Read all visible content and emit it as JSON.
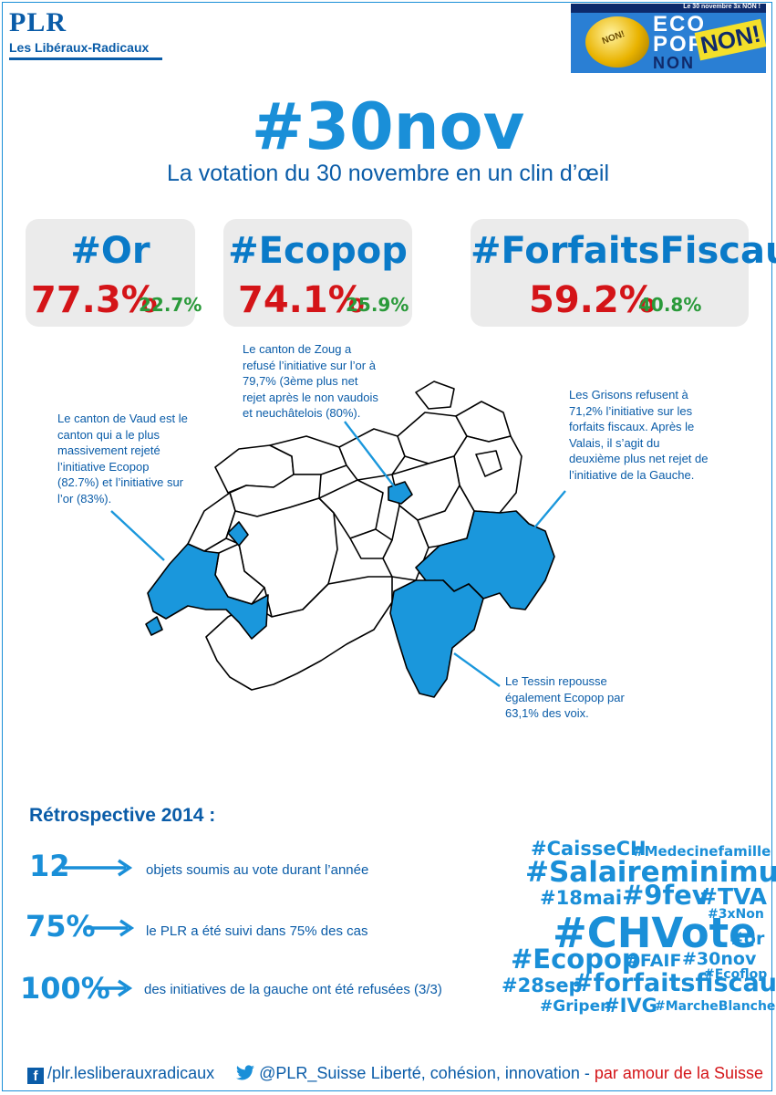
{
  "header": {
    "logo": "PLR",
    "party_name": "Les Libéraux-Radicaux",
    "banner": {
      "top_line": "Le 30 novembre 3x NON !",
      "coin_text": "NON!",
      "line1": "ECO",
      "line2": "POP",
      "line3": "NON",
      "stamp": "NON!"
    }
  },
  "title": "#30nov",
  "subtitle": "La votation du 30 novembre en un clin d’œil",
  "results": [
    {
      "tag": "#Or",
      "no_share": "77.3%",
      "yes_share": "22.7%"
    },
    {
      "tag": "#Ecopop",
      "no_share": "74.1%",
      "yes_share": "25.9%"
    },
    {
      "tag": "#ForfaitsFiscaux",
      "no_share": "59.2%",
      "yes_share": "40.8%"
    }
  ],
  "colors": {
    "brand_blue": "#0a5ca8",
    "accent_blue": "#1a8fd8",
    "map_highlight": "#1a97dc",
    "no_red": "#d41418",
    "yes_green": "#2a9a3a"
  },
  "annotations": {
    "zoug": [
      "Le canton de Zoug a",
      "refusé l’initiative sur l’or à",
      "79,7% (3ème plus net",
      "rejet après le non vaudois",
      "et neuchâtelois (80%)."
    ],
    "vaud": [
      "Le canton de Vaud est le",
      "canton qui a le plus",
      "massivement rejeté",
      "l’initiative Ecopop",
      "(82.7%) et l’initiative sur",
      "l’or (83%)."
    ],
    "grisons": [
      "Les Grisons refusent à",
      "71,2% l’initiative sur les",
      "forfaits fiscaux. Après le",
      "Valais, il s’agit du",
      "deuxième plus net rejet de",
      "l’initiative de la Gauche."
    ],
    "tessin": [
      "Le Tessin repousse",
      "également Ecopop par",
      "63,1% des voix."
    ]
  },
  "retrospective": {
    "heading": "Rétrospective 2014 :",
    "stats": [
      {
        "value": "12",
        "text": "objets soumis au vote durant l’année"
      },
      {
        "value": "75%",
        "text": "le PLR a été suivi dans 75% des cas"
      },
      {
        "value": "100%",
        "text": "des initiatives de la gauche ont été refusées (3/3)"
      }
    ]
  },
  "tag_cloud": [
    "#CaisseCH",
    "#Medecinefamille",
    "#Salaireminimum",
    "#18mai",
    "#9fev",
    "#TVA",
    "#3xNon",
    "#CHVote",
    "#or",
    "#Ecopop",
    "#FAIF",
    "#30nov",
    "#Ecoflop",
    "#28sep",
    "#forfaitsfiscaux",
    "#Gripen",
    "#IVG",
    "#MarcheBlanche"
  ],
  "footer": {
    "facebook_icon": "facebook-icon",
    "facebook": "/plr.lesliberauxradicaux",
    "twitter_icon": "twitter-icon",
    "twitter": "@PLR_Suisse",
    "slogan_main": "Liberté, cohésion, innovation - ",
    "slogan_accent": "par amour de la Suisse"
  }
}
